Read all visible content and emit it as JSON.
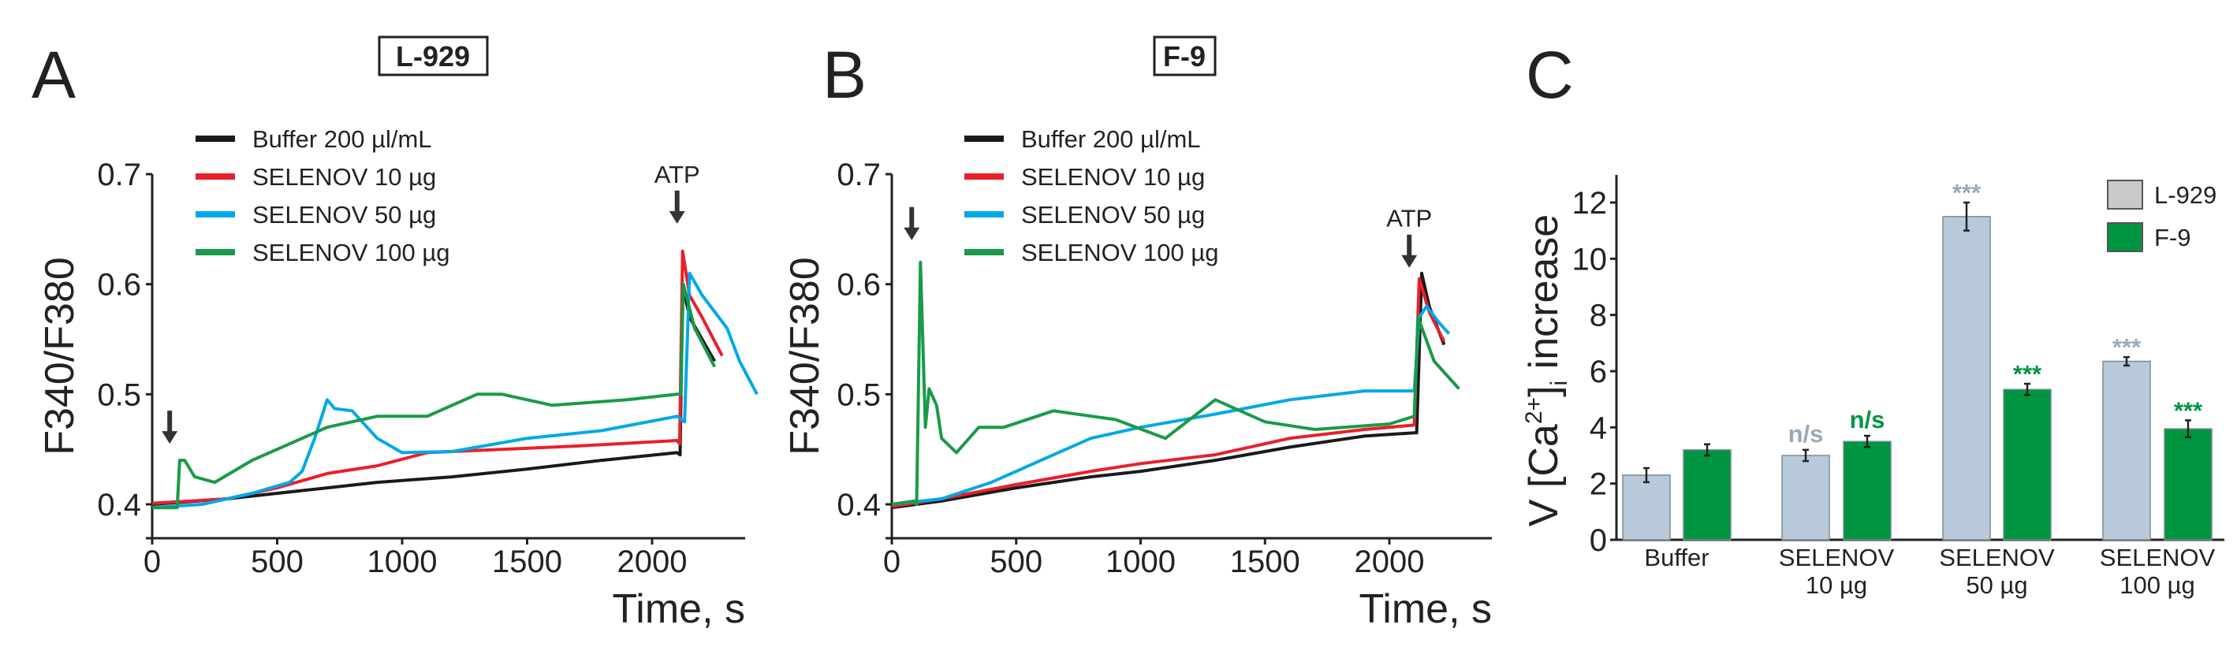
{
  "colors": {
    "black": "#1a1a1a",
    "red": "#e8202a",
    "blue": "#00a8e8",
    "green": "#1a9a48",
    "l929": "#b8cad9",
    "f9": "#009540",
    "l929_annot": "#9aa9b8"
  },
  "chart_data": [
    {
      "type": "line",
      "panel_label": "A",
      "title": "L-929",
      "xlabel": "Time, s",
      "ylabel": "F340/F380",
      "xlim": [
        0,
        2450
      ],
      "ylim": [
        0.37,
        0.7
      ],
      "xticks": [
        "0",
        "500",
        "1000",
        "1500",
        "2000"
      ],
      "yticks": [
        "0.4",
        "0.5",
        "0.6",
        "0.7"
      ],
      "legend_position": "top-left",
      "annotations": [
        {
          "label": "",
          "x": 70,
          "y": 0.455
        },
        {
          "label": "ATP",
          "x": 2100,
          "y": 0.655
        }
      ],
      "series": [
        {
          "name": "Buffer 200 µl/mL",
          "color": "black",
          "points": [
            [
              0,
              0.4
            ],
            [
              300,
              0.405
            ],
            [
              500,
              0.41
            ],
            [
              700,
              0.415
            ],
            [
              900,
              0.42
            ],
            [
              1200,
              0.425
            ],
            [
              1500,
              0.432
            ],
            [
              1800,
              0.44
            ],
            [
              2100,
              0.447
            ],
            [
              2112,
              0.445
            ],
            [
              2122,
              0.6
            ],
            [
              2150,
              0.57
            ],
            [
              2200,
              0.55
            ],
            [
              2250,
              0.53
            ]
          ]
        },
        {
          "name": "SELENOV 10 µg",
          "color": "red",
          "points": [
            [
              0,
              0.401
            ],
            [
              300,
              0.405
            ],
            [
              500,
              0.415
            ],
            [
              700,
              0.428
            ],
            [
              900,
              0.435
            ],
            [
              1100,
              0.447
            ],
            [
              1400,
              0.45
            ],
            [
              1700,
              0.453
            ],
            [
              2100,
              0.458
            ],
            [
              2110,
              0.455
            ],
            [
              2122,
              0.63
            ],
            [
              2150,
              0.59
            ],
            [
              2200,
              0.57
            ],
            [
              2280,
              0.535
            ]
          ]
        },
        {
          "name": "SELENOV 50 µg",
          "color": "blue",
          "points": [
            [
              0,
              0.397
            ],
            [
              200,
              0.4
            ],
            [
              400,
              0.41
            ],
            [
              550,
              0.42
            ],
            [
              600,
              0.43
            ],
            [
              650,
              0.46
            ],
            [
              700,
              0.495
            ],
            [
              730,
              0.487
            ],
            [
              800,
              0.485
            ],
            [
              900,
              0.46
            ],
            [
              1000,
              0.447
            ],
            [
              1200,
              0.448
            ],
            [
              1500,
              0.46
            ],
            [
              1800,
              0.467
            ],
            [
              2100,
              0.48
            ],
            [
              2130,
              0.475
            ],
            [
              2150,
              0.61
            ],
            [
              2200,
              0.59
            ],
            [
              2300,
              0.56
            ],
            [
              2350,
              0.53
            ],
            [
              2420,
              0.5
            ]
          ]
        },
        {
          "name": "SELENOV 100 µg",
          "color": "green",
          "points": [
            [
              0,
              0.397
            ],
            [
              100,
              0.397
            ],
            [
              110,
              0.44
            ],
            [
              130,
              0.44
            ],
            [
              170,
              0.425
            ],
            [
              250,
              0.42
            ],
            [
              400,
              0.44
            ],
            [
              500,
              0.45
            ],
            [
              700,
              0.47
            ],
            [
              900,
              0.48
            ],
            [
              1100,
              0.48
            ],
            [
              1300,
              0.5
            ],
            [
              1400,
              0.5
            ],
            [
              1600,
              0.49
            ],
            [
              1900,
              0.495
            ],
            [
              2100,
              0.5
            ],
            [
              2115,
              0.5
            ],
            [
              2125,
              0.6
            ],
            [
              2170,
              0.56
            ],
            [
              2250,
              0.525
            ]
          ]
        }
      ]
    },
    {
      "type": "line",
      "panel_label": "B",
      "title": "F-9",
      "xlabel": "Time, s",
      "ylabel": "F340/F380",
      "xlim": [
        0,
        2410
      ],
      "ylim": [
        0.37,
        0.7
      ],
      "xticks": [
        "0",
        "500",
        "1000",
        "1500",
        "2000"
      ],
      "yticks": [
        "0.4",
        "0.5",
        "0.6",
        "0.7"
      ],
      "legend_position": "top-left",
      "annotations": [
        {
          "label": "",
          "x": 80,
          "y": 0.64
        },
        {
          "label": "ATP",
          "x": 2080,
          "y": 0.615
        }
      ],
      "series": [
        {
          "name": "Buffer 200 µl/mL",
          "color": "black",
          "points": [
            [
              0,
              0.397
            ],
            [
              200,
              0.403
            ],
            [
              500,
              0.415
            ],
            [
              800,
              0.425
            ],
            [
              1000,
              0.43
            ],
            [
              1300,
              0.44
            ],
            [
              1600,
              0.452
            ],
            [
              1900,
              0.462
            ],
            [
              2100,
              0.465
            ],
            [
              2110,
              0.465
            ],
            [
              2130,
              0.61
            ],
            [
              2160,
              0.58
            ],
            [
              2220,
              0.545
            ]
          ]
        },
        {
          "name": "SELENOV 10 µg",
          "color": "red",
          "points": [
            [
              0,
              0.398
            ],
            [
              200,
              0.405
            ],
            [
              500,
              0.418
            ],
            [
              800,
              0.43
            ],
            [
              1000,
              0.437
            ],
            [
              1300,
              0.445
            ],
            [
              1600,
              0.46
            ],
            [
              1900,
              0.468
            ],
            [
              2100,
              0.472
            ],
            [
              2120,
              0.605
            ],
            [
              2160,
              0.575
            ],
            [
              2220,
              0.548
            ]
          ]
        },
        {
          "name": "SELENOV 50 µg",
          "color": "blue",
          "points": [
            [
              0,
              0.4
            ],
            [
              200,
              0.405
            ],
            [
              400,
              0.42
            ],
            [
              600,
              0.44
            ],
            [
              800,
              0.46
            ],
            [
              1000,
              0.47
            ],
            [
              1300,
              0.482
            ],
            [
              1600,
              0.495
            ],
            [
              1900,
              0.503
            ],
            [
              2100,
              0.503
            ],
            [
              2120,
              0.57
            ],
            [
              2150,
              0.58
            ],
            [
              2200,
              0.565
            ],
            [
              2240,
              0.555
            ]
          ]
        },
        {
          "name": "SELENOV 100 µg",
          "color": "green",
          "points": [
            [
              0,
              0.4
            ],
            [
              90,
              0.403
            ],
            [
              100,
              0.4
            ],
            [
              115,
              0.62
            ],
            [
              135,
              0.47
            ],
            [
              150,
              0.505
            ],
            [
              180,
              0.49
            ],
            [
              200,
              0.46
            ],
            [
              260,
              0.447
            ],
            [
              350,
              0.47
            ],
            [
              450,
              0.47
            ],
            [
              650,
              0.485
            ],
            [
              900,
              0.477
            ],
            [
              1100,
              0.46
            ],
            [
              1300,
              0.495
            ],
            [
              1500,
              0.475
            ],
            [
              1700,
              0.468
            ],
            [
              2000,
              0.473
            ],
            [
              2100,
              0.48
            ],
            [
              2115,
              0.57
            ],
            [
              2180,
              0.53
            ],
            [
              2280,
              0.505
            ]
          ]
        }
      ]
    },
    {
      "type": "bar",
      "panel_label": "C",
      "ylabel": "V [Ca2+]i increase",
      "ylabel_parts": {
        "main": "V [Ca",
        "sup": "2+",
        "close": "]",
        "sub": "i",
        "tail": " increase"
      },
      "ylim": [
        0,
        12.9
      ],
      "yticks": [
        "0",
        "2",
        "4",
        "6",
        "8",
        "10",
        "12"
      ],
      "categories": [
        [
          "Buffer"
        ],
        [
          "SELENOV",
          "10 µg"
        ],
        [
          "SELENOV",
          "50 µg"
        ],
        [
          "SELENOV",
          "100 µg"
        ]
      ],
      "legend_position": "top-right",
      "series": [
        {
          "name": "L-929",
          "color": "l929",
          "values": [
            2.3,
            3.0,
            11.5,
            6.35
          ],
          "errors": [
            0.25,
            0.2,
            0.5,
            0.15
          ],
          "annotations": [
            "",
            "n/s",
            "***",
            "***"
          ]
        },
        {
          "name": "F-9",
          "color": "f9",
          "values": [
            3.2,
            3.5,
            5.35,
            3.95
          ],
          "errors": [
            0.2,
            0.2,
            0.2,
            0.3
          ],
          "annotations": [
            "",
            "n/s",
            "***",
            "***"
          ]
        }
      ]
    }
  ]
}
